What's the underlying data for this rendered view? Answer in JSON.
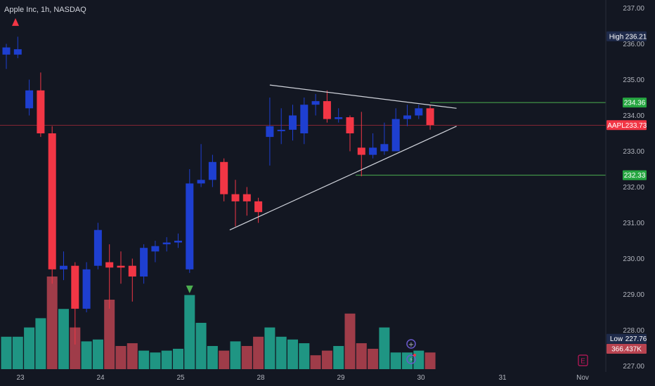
{
  "header": {
    "title": "Apple Inc, 1h, NASDAQ"
  },
  "colors": {
    "background": "#131722",
    "up": "#1e3fd0",
    "down": "#f23645",
    "volume_up": "#22ab94",
    "volume_down": "#b84350",
    "trendline": "#d1d4dc",
    "level_line": "#4caf50",
    "last_price_line": "#f23645"
  },
  "chart_data": {
    "type": "candlestick",
    "symbol": "AAPL",
    "interval": "1h",
    "exchange": "NASDAQ",
    "ylim": [
      226.8,
      237.2
    ],
    "y_ticks": [
      "237.00",
      "236.00",
      "235.00",
      "234.00",
      "233.00",
      "232.00",
      "231.00",
      "230.00",
      "229.00",
      "228.00",
      "227.00"
    ],
    "x_ticks": [
      "23",
      "24",
      "25",
      "28",
      "29",
      "30",
      "31",
      "Nov"
    ],
    "candles": [
      {
        "o": 235.7,
        "h": 236.0,
        "l": 235.3,
        "c": 235.9
      },
      {
        "o": 235.7,
        "h": 236.2,
        "l": 235.6,
        "c": 235.85
      },
      {
        "o": 234.2,
        "h": 235.0,
        "l": 234.0,
        "c": 234.7
      },
      {
        "o": 234.7,
        "h": 235.2,
        "l": 233.4,
        "c": 233.5
      },
      {
        "o": 233.5,
        "h": 233.7,
        "l": 229.3,
        "c": 229.7
      },
      {
        "o": 229.7,
        "h": 230.2,
        "l": 229.4,
        "c": 229.8
      },
      {
        "o": 229.8,
        "h": 229.9,
        "l": 227.6,
        "c": 228.6
      },
      {
        "o": 228.6,
        "h": 229.9,
        "l": 228.5,
        "c": 229.7
      },
      {
        "o": 229.8,
        "h": 231.0,
        "l": 229.7,
        "c": 230.8
      },
      {
        "o": 229.9,
        "h": 230.4,
        "l": 228.6,
        "c": 229.75
      },
      {
        "o": 229.8,
        "h": 230.2,
        "l": 229.3,
        "c": 229.75
      },
      {
        "o": 229.8,
        "h": 230.0,
        "l": 228.8,
        "c": 229.5
      },
      {
        "o": 229.5,
        "h": 230.4,
        "l": 229.3,
        "c": 230.3
      },
      {
        "o": 230.2,
        "h": 230.5,
        "l": 229.9,
        "c": 230.35
      },
      {
        "o": 230.4,
        "h": 230.6,
        "l": 230.2,
        "c": 230.45
      },
      {
        "o": 230.45,
        "h": 230.7,
        "l": 230.3,
        "c": 230.5
      },
      {
        "o": 229.7,
        "h": 232.5,
        "l": 229.6,
        "c": 232.1
      },
      {
        "o": 232.1,
        "h": 233.2,
        "l": 232.0,
        "c": 232.2
      },
      {
        "o": 232.2,
        "h": 232.9,
        "l": 232.0,
        "c": 232.7
      },
      {
        "o": 232.7,
        "h": 232.8,
        "l": 231.6,
        "c": 231.8
      },
      {
        "o": 231.8,
        "h": 232.2,
        "l": 230.9,
        "c": 231.6
      },
      {
        "o": 231.8,
        "h": 232.0,
        "l": 231.2,
        "c": 231.6
      },
      {
        "o": 231.6,
        "h": 231.7,
        "l": 231.0,
        "c": 231.3
      },
      {
        "o": 233.4,
        "h": 234.5,
        "l": 232.6,
        "c": 233.7
      },
      {
        "o": 233.6,
        "h": 234.2,
        "l": 233.2,
        "c": 233.6
      },
      {
        "o": 233.6,
        "h": 234.3,
        "l": 233.3,
        "c": 234.0
      },
      {
        "o": 233.5,
        "h": 234.5,
        "l": 233.2,
        "c": 234.3
      },
      {
        "o": 234.3,
        "h": 234.6,
        "l": 234.0,
        "c": 234.4
      },
      {
        "o": 234.4,
        "h": 234.7,
        "l": 233.8,
        "c": 233.9
      },
      {
        "o": 233.9,
        "h": 234.2,
        "l": 233.8,
        "c": 233.95
      },
      {
        "o": 233.95,
        "h": 234.0,
        "l": 233.0,
        "c": 233.5
      },
      {
        "o": 233.1,
        "h": 234.1,
        "l": 232.3,
        "c": 232.9
      },
      {
        "o": 232.9,
        "h": 233.5,
        "l": 232.8,
        "c": 233.1
      },
      {
        "o": 233.0,
        "h": 233.8,
        "l": 232.9,
        "c": 233.2
      },
      {
        "o": 233.0,
        "h": 234.2,
        "l": 233.0,
        "c": 233.9
      },
      {
        "o": 233.9,
        "h": 234.3,
        "l": 233.7,
        "c": 234.0
      },
      {
        "o": 234.0,
        "h": 234.3,
        "l": 233.9,
        "c": 234.2
      },
      {
        "o": 234.2,
        "h": 234.3,
        "l": 233.6,
        "c": 233.73
      }
    ],
    "volume": [
      {
        "v": 0.35,
        "up": true
      },
      {
        "v": 0.35,
        "up": true
      },
      {
        "v": 0.45,
        "up": true
      },
      {
        "v": 0.55,
        "up": true
      },
      {
        "v": 1.0,
        "up": false
      },
      {
        "v": 0.65,
        "up": true
      },
      {
        "v": 0.45,
        "up": false
      },
      {
        "v": 0.3,
        "up": true
      },
      {
        "v": 0.32,
        "up": true
      },
      {
        "v": 0.75,
        "up": false
      },
      {
        "v": 0.25,
        "up": false
      },
      {
        "v": 0.28,
        "up": false
      },
      {
        "v": 0.2,
        "up": true
      },
      {
        "v": 0.18,
        "up": true
      },
      {
        "v": 0.2,
        "up": true
      },
      {
        "v": 0.22,
        "up": true
      },
      {
        "v": 0.8,
        "up": true
      },
      {
        "v": 0.5,
        "up": true
      },
      {
        "v": 0.25,
        "up": true
      },
      {
        "v": 0.2,
        "up": false
      },
      {
        "v": 0.3,
        "up": true
      },
      {
        "v": 0.25,
        "up": false
      },
      {
        "v": 0.35,
        "up": false
      },
      {
        "v": 0.45,
        "up": true
      },
      {
        "v": 0.35,
        "up": true
      },
      {
        "v": 0.32,
        "up": true
      },
      {
        "v": 0.28,
        "up": true
      },
      {
        "v": 0.15,
        "up": false
      },
      {
        "v": 0.2,
        "up": false
      },
      {
        "v": 0.25,
        "up": true
      },
      {
        "v": 0.6,
        "up": false
      },
      {
        "v": 0.28,
        "up": false
      },
      {
        "v": 0.22,
        "up": false
      },
      {
        "v": 0.45,
        "up": true
      },
      {
        "v": 0.18,
        "up": true
      },
      {
        "v": 0.18,
        "up": true
      },
      {
        "v": 0.2,
        "up": true
      },
      {
        "v": 0.18,
        "up": false
      }
    ],
    "trendlines": [
      {
        "from": {
          "i": 23,
          "p": 234.85
        },
        "to": {
          "i": 39.3,
          "p": 234.2
        }
      },
      {
        "from": {
          "i": 19.5,
          "p": 230.8
        },
        "to": {
          "i": 39.3,
          "p": 233.7
        }
      }
    ],
    "levels": [
      {
        "price": 234.36,
        "label": "234.36",
        "start_i": 37
      },
      {
        "price": 232.33,
        "label": "232.33",
        "start_i": 30.5
      }
    ],
    "price_tags": {
      "high": {
        "label": "High",
        "value": "236.21",
        "price": 236.21
      },
      "last": {
        "label": "AAPL",
        "value": "233.73",
        "price": 233.73
      },
      "low": {
        "label": "Low",
        "value": "227.76",
        "price": 227.76
      },
      "volume": {
        "value": "366.437K"
      }
    },
    "markers": [
      {
        "type": "up-arrow",
        "i": 0.8,
        "price": 236.6,
        "color": "#f23645"
      },
      {
        "type": "down-arrow",
        "i": 16.0,
        "price": 229.15,
        "color": "#4caf50"
      }
    ]
  }
}
